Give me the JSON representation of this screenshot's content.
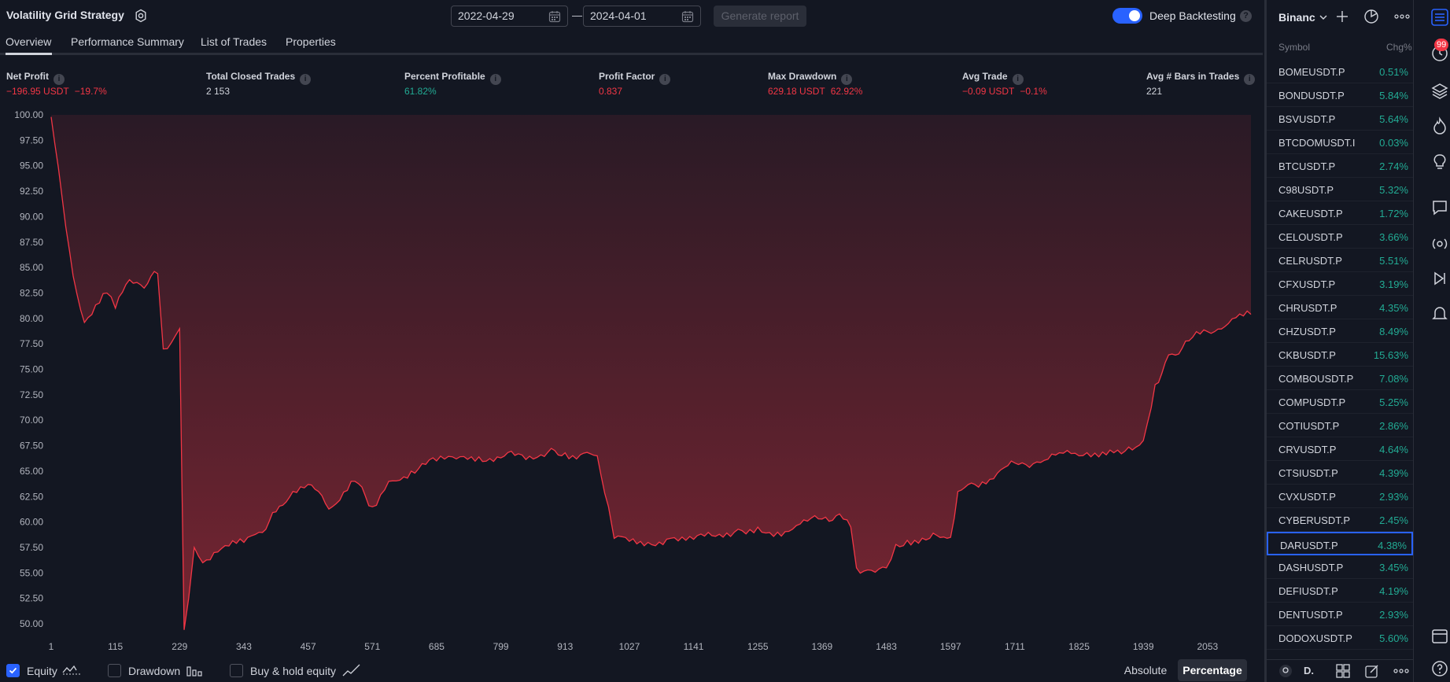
{
  "header": {
    "strategy_title": "Volatility Grid Strategy",
    "date_start": "2022-04-29",
    "date_end": "2024-04-01",
    "date_separator": "—",
    "generate_report_label": "Generate report",
    "deep_backtesting_label": "Deep Backtesting",
    "deep_backtesting_enabled": true,
    "help_glyph": "?"
  },
  "tabs": [
    {
      "label": "Overview",
      "active": true
    },
    {
      "label": "Performance Summary",
      "active": false
    },
    {
      "label": "List of Trades",
      "active": false
    },
    {
      "label": "Properties",
      "active": false
    }
  ],
  "metrics": [
    {
      "label": "Net Profit",
      "value": "−196.95 USDT",
      "sub": "−19.7%",
      "tone": "neg"
    },
    {
      "label": "Total Closed Trades",
      "value": "2 153",
      "sub": "",
      "tone": "neutral"
    },
    {
      "label": "Percent Profitable",
      "value": "61.82%",
      "sub": "",
      "tone": "pos"
    },
    {
      "label": "Profit Factor",
      "value": "0.837",
      "sub": "",
      "tone": "neg"
    },
    {
      "label": "Max Drawdown",
      "value": "629.18 USDT",
      "sub": "62.92%",
      "tone": "neg"
    },
    {
      "label": "Avg Trade",
      "value": "−0.09 USDT",
      "sub": "−0.1%",
      "tone": "neg"
    },
    {
      "label": "Avg # Bars in Trades",
      "value": "221",
      "sub": "",
      "tone": "neutral"
    }
  ],
  "legend": {
    "equity_label": "Equity",
    "equity_checked": true,
    "drawdown_label": "Drawdown",
    "drawdown_checked": false,
    "buyhold_label": "Buy & hold equity",
    "buyhold_checked": false,
    "absolute_label": "Absolute",
    "percentage_label": "Percentage",
    "percentage_selected": true
  },
  "chart_data": {
    "type": "area",
    "series": [
      {
        "name": "Equity",
        "color": "#f23645"
      }
    ],
    "x": [
      1,
      40,
      60,
      100,
      115,
      140,
      160,
      190,
      200,
      229,
      237,
      245,
      255,
      270,
      290,
      343,
      370,
      400,
      430,
      457,
      500,
      540,
      571,
      600,
      640,
      685,
      720,
      760,
      799,
      830,
      870,
      913,
      940,
      970,
      990,
      1000,
      1027,
      1060,
      1100,
      1141,
      1180,
      1220,
      1255,
      1290,
      1330,
      1369,
      1400,
      1420,
      1430,
      1450,
      1483,
      1500,
      1520,
      1560,
      1597,
      1610,
      1640,
      1680,
      1711,
      1750,
      1790,
      1825,
      1860,
      1900,
      1939,
      1960,
      1990,
      2020,
      2053,
      2090,
      2130
    ],
    "y": [
      99.8,
      84.2,
      79.6,
      82.5,
      81.0,
      83.8,
      83.3,
      84.4,
      77.0,
      79.0,
      49.4,
      52.5,
      57.5,
      56.0,
      57.0,
      58.0,
      59.0,
      61.0,
      63.0,
      63.7,
      61.5,
      64.0,
      61.5,
      64.0,
      65.0,
      66.0,
      66.2,
      66.4,
      66.3,
      66.7,
      66.6,
      66.8,
      66.6,
      66.5,
      61.5,
      58.4,
      58.1,
      58.0,
      58.4,
      58.3,
      58.6,
      59.3,
      59.5,
      59.0,
      59.8,
      60.3,
      60.8,
      59.5,
      55.5,
      55.3,
      55.5,
      57.8,
      58.2,
      58.4,
      58.5,
      63.0,
      63.7,
      64.8,
      65.8,
      65.9,
      66.8,
      66.5,
      66.4,
      66.7,
      68.0,
      73.5,
      76.5,
      77.8,
      78.7,
      79.5,
      80.4
    ],
    "ylim": [
      49,
      100
    ],
    "yticks": [
      "100.00",
      "97.50",
      "95.00",
      "92.50",
      "90.00",
      "87.50",
      "85.00",
      "82.50",
      "80.00",
      "77.50",
      "75.00",
      "72.50",
      "70.00",
      "67.50",
      "65.00",
      "62.50",
      "60.00",
      "57.50",
      "55.00",
      "52.50",
      "50.00"
    ],
    "xticks": [
      "1",
      "115",
      "229",
      "343",
      "457",
      "571",
      "685",
      "799",
      "913",
      "1027",
      "1141",
      "1255",
      "1369",
      "1483",
      "1597",
      "1711",
      "1825",
      "1939",
      "2053"
    ],
    "xlim": [
      1,
      2130
    ],
    "grid": false
  },
  "watchlist": {
    "exchange_label": "Binanc",
    "col_symbol": "Symbol",
    "col_chg": "Chg%",
    "selected_index": 20,
    "rows": [
      {
        "symbol": "BOMEUSDT.P",
        "chg": "0.51%"
      },
      {
        "symbol": "BONDUSDT.P",
        "chg": "5.84%"
      },
      {
        "symbol": "BSVUSDT.P",
        "chg": "5.64%"
      },
      {
        "symbol": "BTCDOMUSDT.I",
        "chg": "0.03%"
      },
      {
        "symbol": "BTCUSDT.P",
        "chg": "2.74%"
      },
      {
        "symbol": "C98USDT.P",
        "chg": "5.32%"
      },
      {
        "symbol": "CAKEUSDT.P",
        "chg": "1.72%"
      },
      {
        "symbol": "CELOUSDT.P",
        "chg": "3.66%"
      },
      {
        "symbol": "CELRUSDT.P",
        "chg": "5.51%"
      },
      {
        "symbol": "CFXUSDT.P",
        "chg": "3.19%"
      },
      {
        "symbol": "CHRUSDT.P",
        "chg": "4.35%"
      },
      {
        "symbol": "CHZUSDT.P",
        "chg": "8.49%"
      },
      {
        "symbol": "CKBUSDT.P",
        "chg": "15.63%"
      },
      {
        "symbol": "COMBOUSDT.P",
        "chg": "7.08%"
      },
      {
        "symbol": "COMPUSDT.P",
        "chg": "5.25%"
      },
      {
        "symbol": "COTIUSDT.P",
        "chg": "2.86%"
      },
      {
        "symbol": "CRVUSDT.P",
        "chg": "4.64%"
      },
      {
        "symbol": "CTSIUSDT.P",
        "chg": "4.39%"
      },
      {
        "symbol": "CVXUSDT.P",
        "chg": "2.93%"
      },
      {
        "symbol": "CYBERUSDT.P",
        "chg": "2.45%"
      },
      {
        "symbol": "DARUSDT.P",
        "chg": "4.38%"
      },
      {
        "symbol": "DASHUSDT.P",
        "chg": "3.45%"
      },
      {
        "symbol": "DEFIUSDT.P",
        "chg": "4.19%"
      },
      {
        "symbol": "DENTUSDT.P",
        "chg": "2.93%"
      },
      {
        "symbol": "DODOXUSDT.P",
        "chg": "5.60%"
      }
    ],
    "footer_label": "D.",
    "notification_badge": "99"
  },
  "colors": {
    "background": "#131722",
    "accent": "#2962ff",
    "negative": "#f23645",
    "positive": "#22ab94"
  }
}
